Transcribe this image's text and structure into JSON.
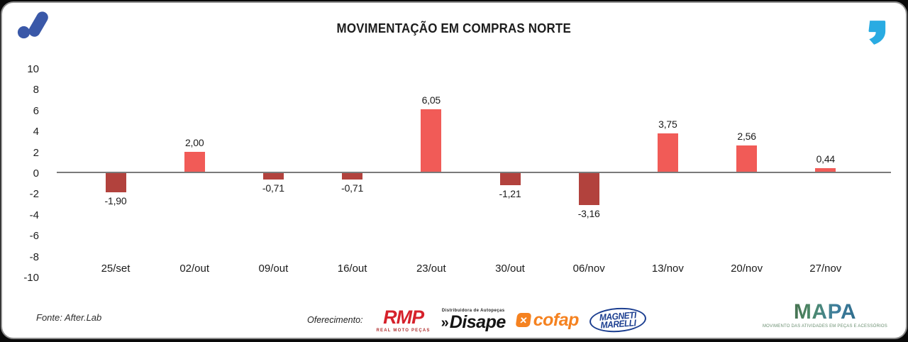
{
  "header": {
    "title": "MOVIMENTAÇÃO EM COMPRAS NORTE",
    "brand_icon": "afterlab-logo",
    "corner_icon": "quote-icon"
  },
  "chart_data": {
    "type": "bar",
    "title": "MOVIMENTAÇÃO EM COMPRAS NORTE",
    "categories": [
      "25/set",
      "02/out",
      "09/out",
      "16/out",
      "23/out",
      "30/out",
      "06/nov",
      "13/nov",
      "20/nov",
      "27/nov"
    ],
    "values": [
      -1.9,
      2.0,
      -0.71,
      -0.71,
      6.05,
      -1.21,
      -3.16,
      3.75,
      2.56,
      0.44
    ],
    "value_labels": [
      "-1,90",
      "2,00",
      "-0,71",
      "-0,71",
      "6,05",
      "-1,21",
      "-3,16",
      "3,75",
      "2,56",
      "0,44"
    ],
    "xlabel": "",
    "ylabel": "",
    "ylim": [
      -10,
      10
    ],
    "yticks": [
      10,
      8,
      6,
      4,
      2,
      0,
      -2,
      -4,
      -6,
      -8,
      -10
    ],
    "ytick_labels": [
      "10",
      "8",
      "6",
      "4",
      "2",
      "0",
      "-2",
      "-4",
      "-6",
      "-8",
      "-10"
    ],
    "grid": false,
    "legend": null,
    "positive_color": "#F15B57",
    "negative_color": "#B2423D",
    "baseline_color": "#7A7A7A"
  },
  "footer": {
    "source": "Fonte: After.Lab",
    "sponsor_label": "Oferecimento:",
    "sponsors": {
      "rmp": {
        "name": "RMP",
        "subtext": "REAL MOTO PEÇAS",
        "color": "#D6212B"
      },
      "disape": {
        "prefix": "»",
        "name": "Disape",
        "subtext": "Distribuidora de Autopeças",
        "color": "#141414"
      },
      "cofap": {
        "name": "cofap",
        "icon": "x-icon",
        "color": "#F58220"
      },
      "magneti": {
        "line1": "MAGNETI",
        "line2": "MARELLI",
        "color": "#1B3E90"
      },
      "mapa": {
        "name": "MAPA",
        "subtext": "MOVIMENTO DAS ATIVIDADES EM PEÇAS E ACESSÓRIOS"
      }
    }
  },
  "colors": {
    "brand_blue": "#3A58A8",
    "quote_cyan": "#29ABE2",
    "card_border": "#8C8C8C"
  }
}
